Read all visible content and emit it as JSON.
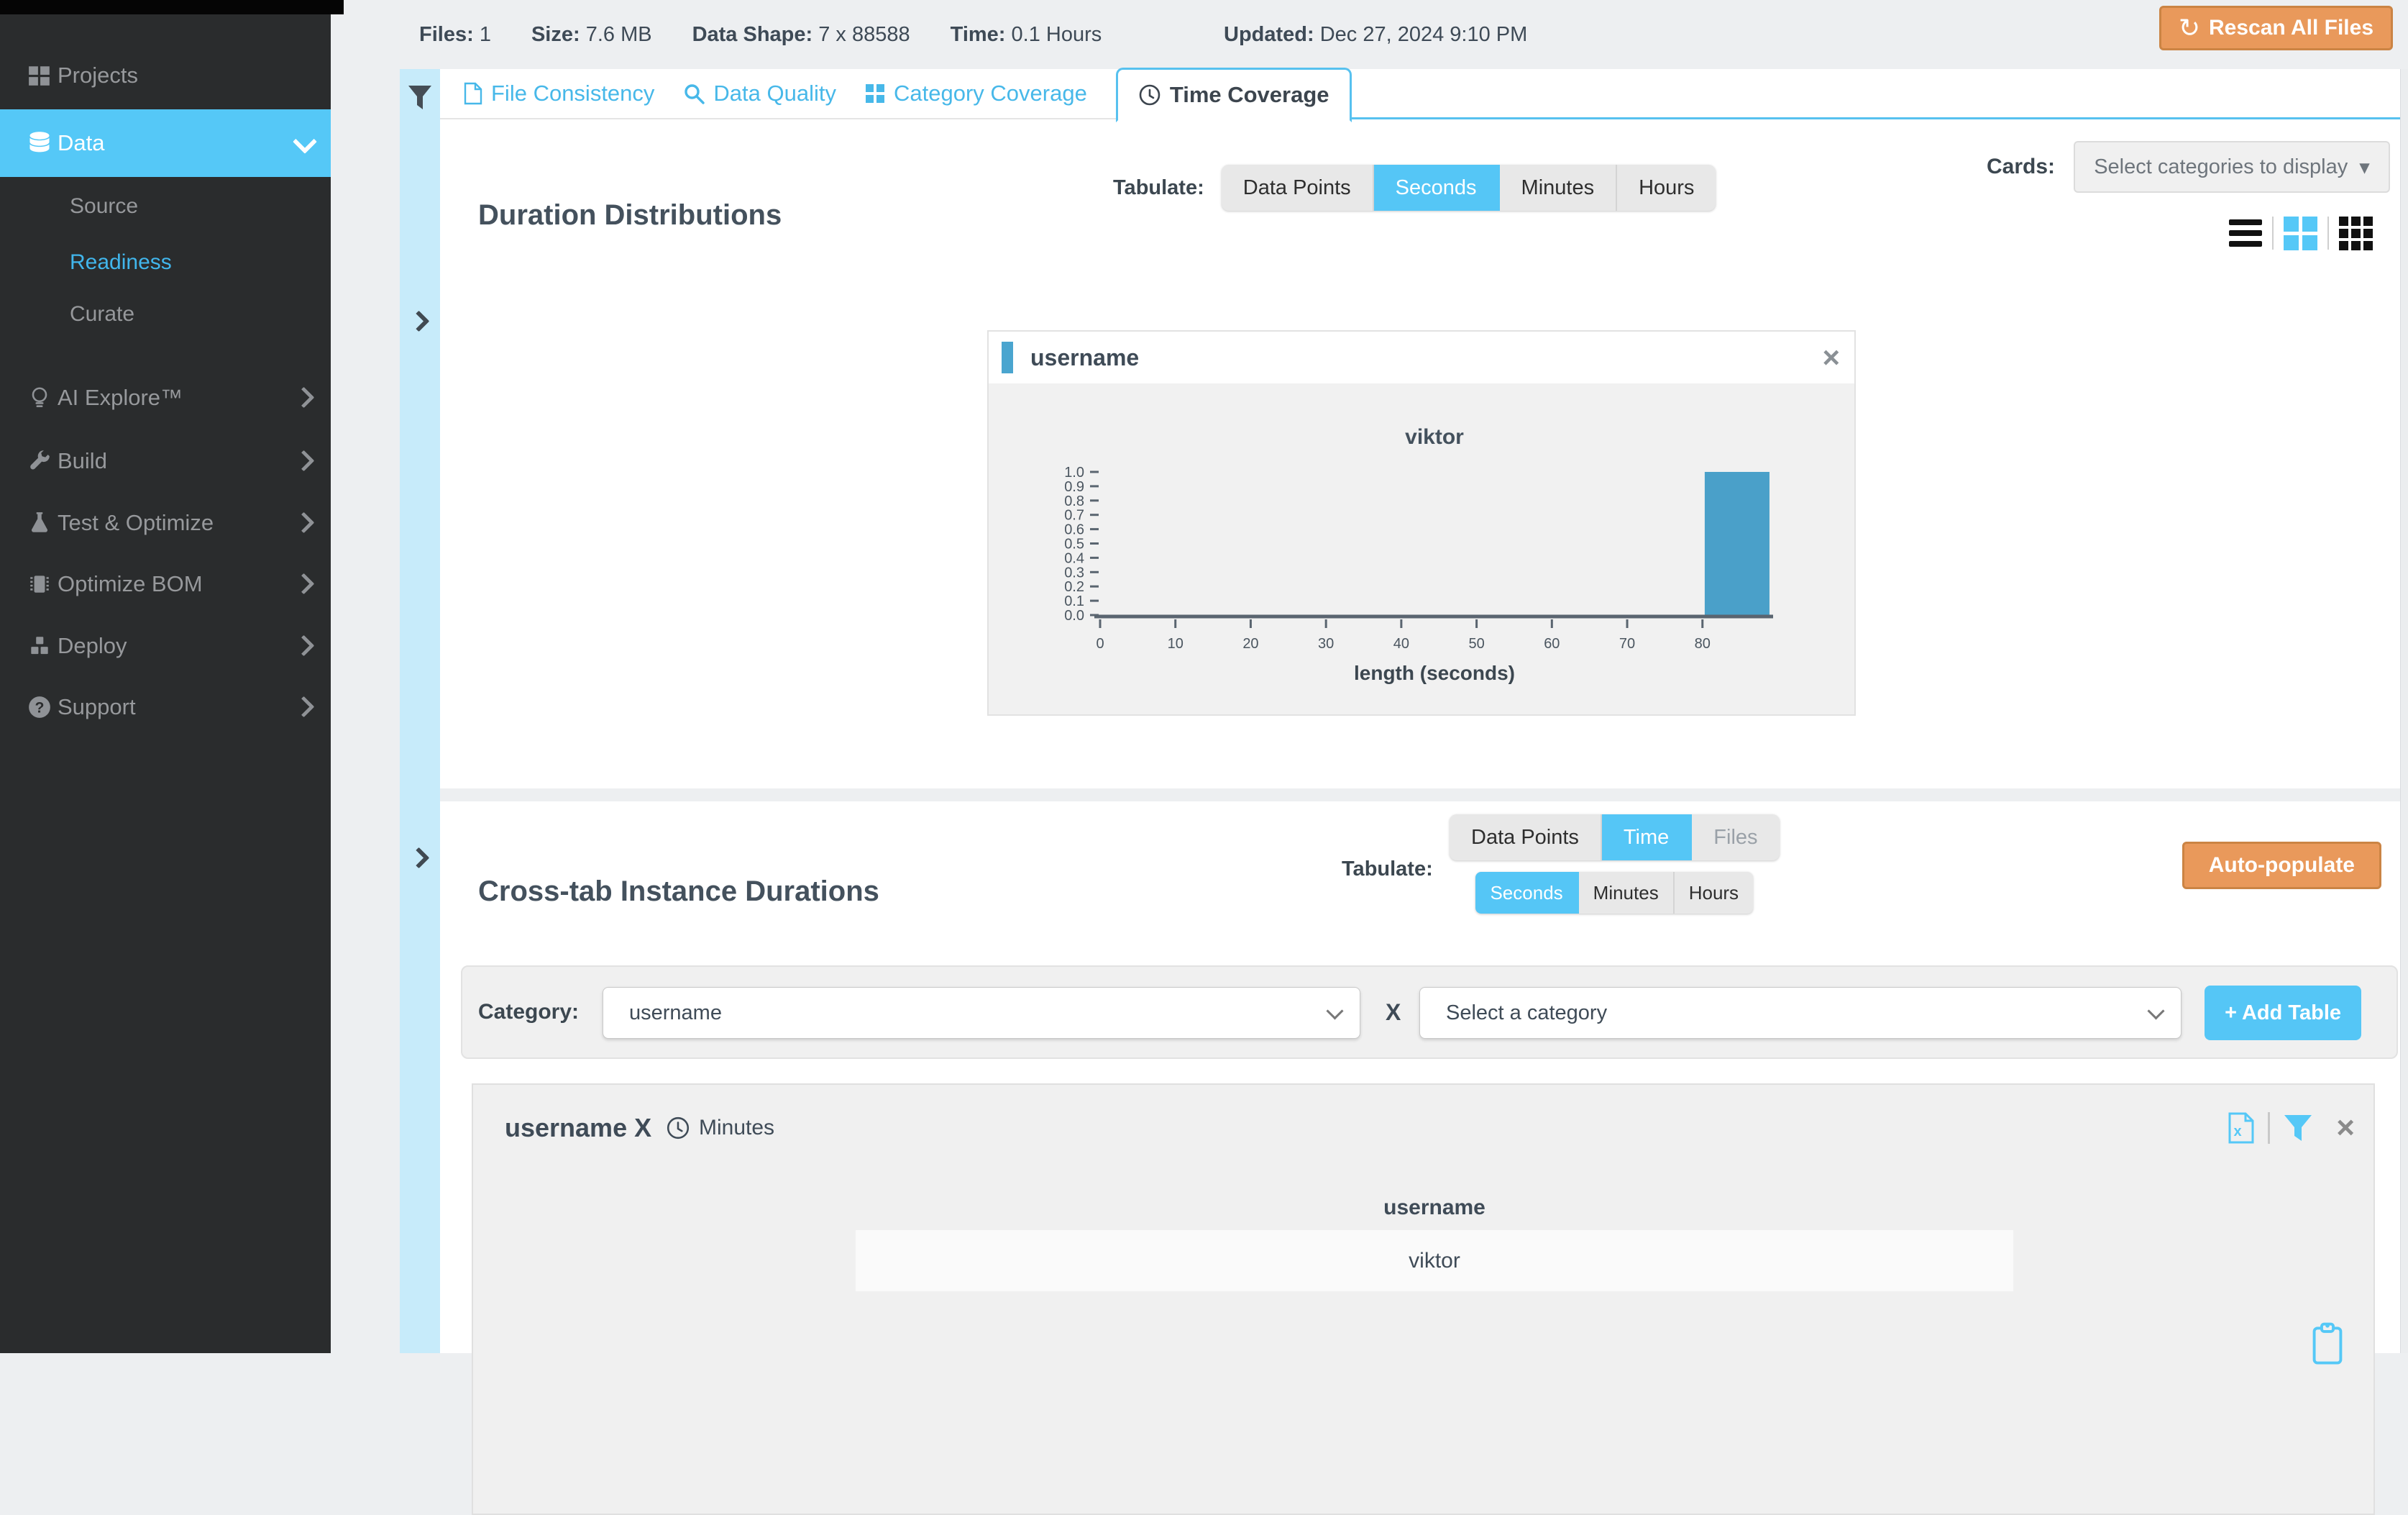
{
  "topbar": {
    "stats": [
      {
        "label": "Files:",
        "value": "1"
      },
      {
        "label": "Size:",
        "value": "7.6 MB"
      },
      {
        "label": "Data Shape:",
        "value": "7 x 88588"
      },
      {
        "label": "Time:",
        "value": "0.1 Hours"
      }
    ],
    "updated_label": "Updated:",
    "updated_value": "Dec 27, 2024 9:10 PM",
    "rescan_icon": "↻",
    "rescan_label": "Rescan All Files"
  },
  "sidebar": {
    "items": [
      {
        "label": "Projects",
        "icon": "grid-icon"
      },
      {
        "label": "Data",
        "icon": "database-icon",
        "state": "active"
      },
      {
        "label": "Source"
      },
      {
        "label": "Readiness",
        "state": "current"
      },
      {
        "label": "Curate"
      },
      {
        "label": "AI Explore™",
        "icon": "lightbulb-icon"
      },
      {
        "label": "Build",
        "icon": "wrench-icon"
      },
      {
        "label": "Test & Optimize",
        "icon": "flask-icon"
      },
      {
        "label": "Optimize BOM",
        "icon": "chip-icon"
      },
      {
        "label": "Deploy",
        "icon": "cubes-icon"
      },
      {
        "label": "Support",
        "icon": "question-icon"
      }
    ]
  },
  "tabs": [
    {
      "label": "File Consistency",
      "icon": "file-icon"
    },
    {
      "label": "Data Quality",
      "icon": "search-icon"
    },
    {
      "label": "Category Coverage",
      "icon": "grid-icon"
    },
    {
      "label": "Time Coverage",
      "icon": "clock-icon",
      "state": "active"
    }
  ],
  "duration_section": {
    "title": "Duration Distributions",
    "tabulate_label": "Tabulate:",
    "tabulate_options": [
      "Data Points",
      "Seconds",
      "Minutes",
      "Hours"
    ],
    "tabulate_active": "Seconds",
    "cards_label": "Cards:",
    "cards_dropdown": "Select categories to display",
    "view_modes": [
      "list",
      "grid-2",
      "grid-3"
    ],
    "view_active": "grid-2"
  },
  "chart_card": {
    "title": "username",
    "chart_data": {
      "type": "bar",
      "title": "viktor",
      "xlabel": "length (seconds)",
      "ylabel": "",
      "xlim": [
        0,
        89
      ],
      "ylim": [
        0,
        1.0
      ],
      "xticks": [
        0,
        10,
        20,
        30,
        40,
        50,
        60,
        70,
        80
      ],
      "yticks": [
        "0.0",
        "0.1",
        "0.2",
        "0.3",
        "0.4",
        "0.5",
        "0.6",
        "0.7",
        "0.8",
        "0.9",
        "1.0"
      ],
      "bars": [
        {
          "x_start": 80.3,
          "x_end": 88.9,
          "value": 1.0
        }
      ],
      "bar_color": "#4aa0c9",
      "grid": false,
      "legend": "none"
    }
  },
  "crosstab_section": {
    "title": "Cross-tab Instance Durations",
    "tabulate_label": "Tabulate:",
    "mode_options": [
      "Data Points",
      "Time",
      "Files"
    ],
    "mode_active": "Time",
    "unit_options": [
      "Seconds",
      "Minutes",
      "Hours"
    ],
    "unit_active": "Seconds",
    "autopopulate_label": "Auto-populate"
  },
  "category_row": {
    "label": "Category:",
    "select1_value": "username",
    "x_label": "X",
    "select2_value": "Select a category",
    "add_table_label": "+ Add Table"
  },
  "table_card": {
    "title": "username X",
    "unit_label": "Minutes",
    "columns": [
      "username"
    ],
    "rows": [
      [
        "viktor"
      ]
    ]
  }
}
